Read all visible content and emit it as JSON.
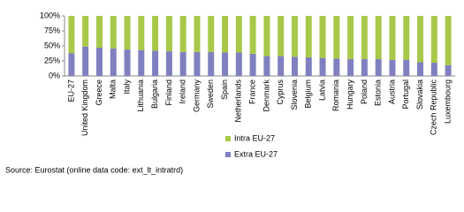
{
  "chart_data": {
    "type": "stacked_bar",
    "categories": [
      "EU-27",
      "United Kingdom",
      "Greece",
      "Malta",
      "Italy",
      "Lithuania",
      "Bulgaria",
      "Finland",
      "Ireland",
      "Germany",
      "Sweden",
      "Spain",
      "Netherlands",
      "France",
      "Denmark",
      "Cyprus",
      "Slovenia",
      "Belgium",
      "Latvia",
      "Romania",
      "Hungary",
      "Poland",
      "Estonia",
      "Austria",
      "Portugal",
      "Slovakia",
      "Czech Republic",
      "Luxembourg"
    ],
    "series": [
      {
        "name": "Extra EU-27",
        "color": "#8080c0",
        "values": [
          38,
          49,
          47,
          46,
          44,
          43,
          42,
          41,
          40,
          40,
          40,
          39,
          39,
          37,
          33,
          33,
          32,
          31,
          30,
          29,
          28,
          28,
          28,
          27,
          27,
          23,
          22,
          18
        ]
      },
      {
        "name": "Intra EU-27",
        "color": "#a8c84a",
        "values": [
          62,
          51,
          53,
          54,
          56,
          57,
          58,
          59,
          60,
          60,
          60,
          61,
          61,
          63,
          67,
          67,
          68,
          69,
          70,
          71,
          72,
          72,
          72,
          73,
          73,
          77,
          78,
          82
        ]
      }
    ],
    "ylim": [
      0,
      100
    ],
    "yticks": [
      {
        "value": 0,
        "label": "0%"
      },
      {
        "value": 25,
        "label": "25%"
      },
      {
        "value": 50,
        "label": "50%"
      },
      {
        "value": 75,
        "label": "75%"
      },
      {
        "value": 100,
        "label": "100%"
      }
    ],
    "source": "Source: Eurostat (online data code: ext_lt_intratrd)"
  }
}
